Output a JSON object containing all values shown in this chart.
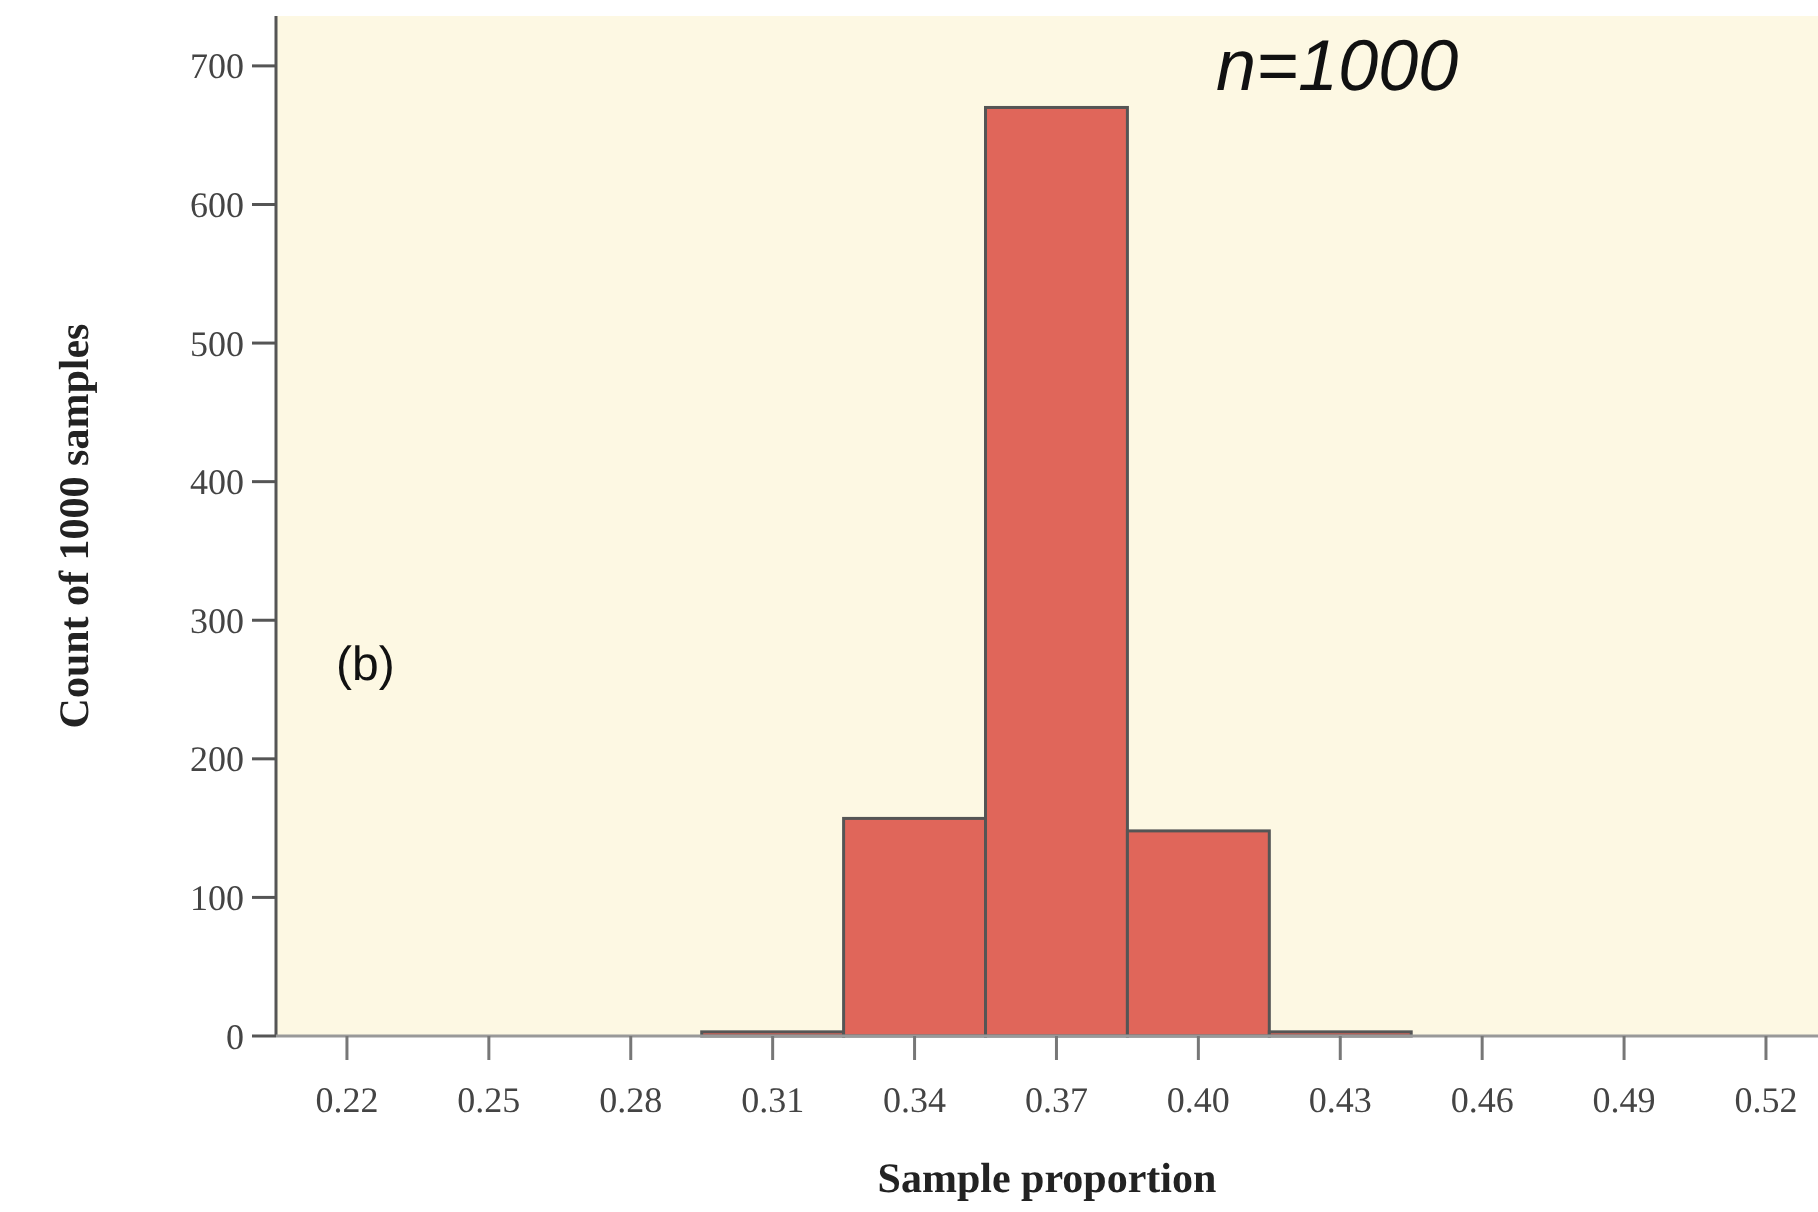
{
  "chart_data": {
    "type": "histogram",
    "xlabel": "Sample proportion",
    "ylabel": "Count of 1000 samples",
    "bins": [
      0.295,
      0.325,
      0.355,
      0.385,
      0.415,
      0.445
    ],
    "values": [
      3,
      157,
      670,
      148,
      3
    ],
    "color": "#e0665a",
    "xlim": [
      0.205,
      0.531
    ],
    "ylim": [
      0,
      736
    ],
    "xticks": [
      0.22,
      0.25,
      0.28,
      0.31,
      0.34,
      0.37,
      {
        "value": 0.4,
        "label": "0.40"
      },
      0.43,
      0.46,
      0.49,
      0.52
    ],
    "yticks": [
      0,
      100,
      200,
      300,
      400,
      500,
      600,
      700
    ],
    "annotations": [
      "n=1000",
      "(b)"
    ],
    "grid": false
  }
}
